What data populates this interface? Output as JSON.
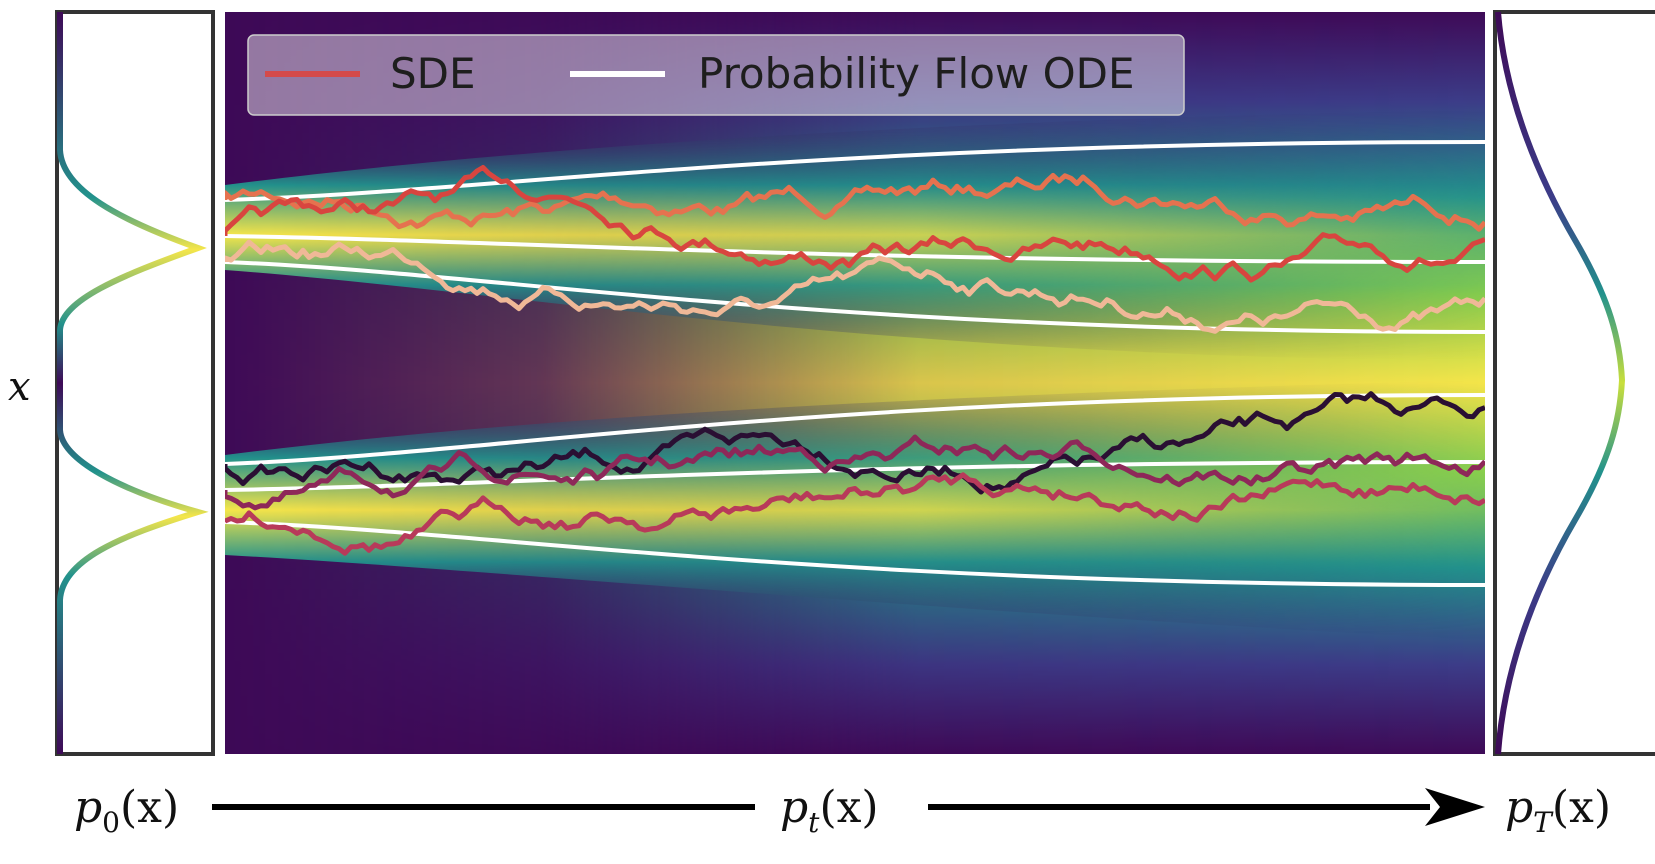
{
  "y_axis_label": "x",
  "bottom_labels": {
    "start": "p",
    "start_sub": "0",
    "middle": "p",
    "middle_sub": "t",
    "end": "p",
    "end_sub": "T",
    "arg": "(x)"
  },
  "legend": {
    "sde_label": "SDE",
    "ode_label": "Probability Flow ODE",
    "sde_color": "#d44a4a",
    "ode_color": "#ffffff"
  },
  "colors": {
    "field_low": "#3e0a57",
    "field_mid": "#22928c",
    "field_high": "#f5e64a",
    "trajectory_colors": [
      "#e5724f",
      "#d8453f",
      "#f0b897",
      "#2a0f33",
      "#8e2859",
      "#b83a5a"
    ]
  },
  "panels": {
    "left": "p0(x)",
    "right": "pT(x)"
  }
}
